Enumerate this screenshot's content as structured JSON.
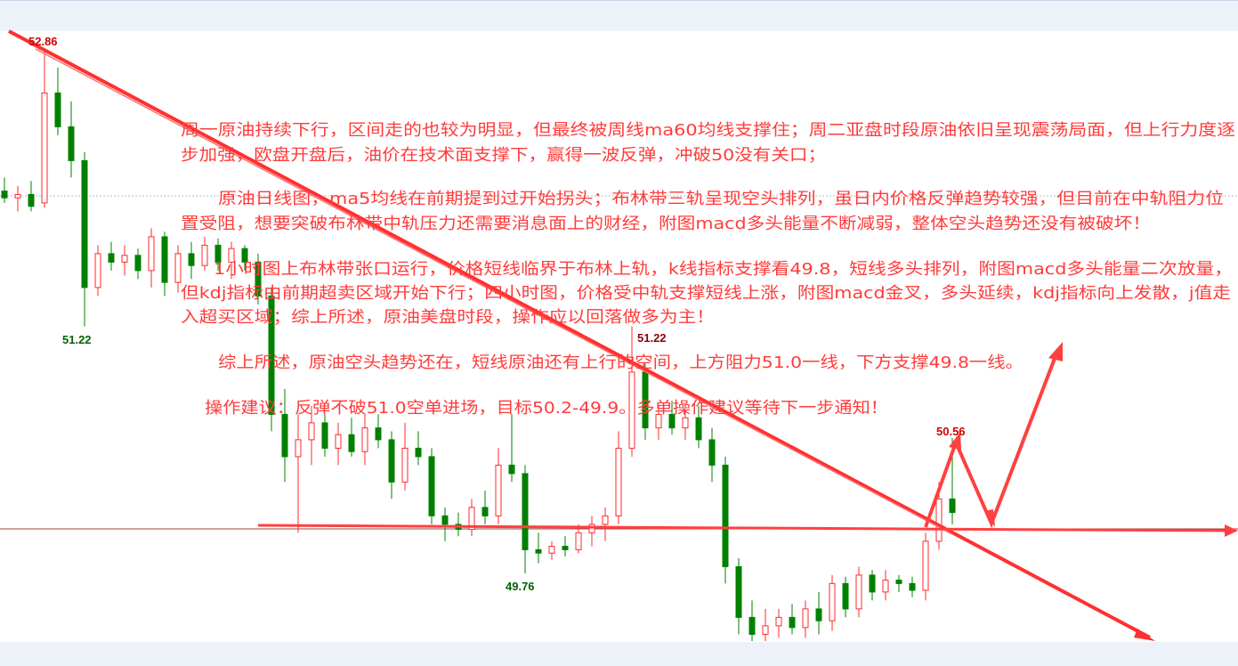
{
  "chart_data": {
    "type": "candlestick",
    "title": "",
    "ylim": [
      49.36,
      53.0
    ],
    "colors": {
      "up": "#ff2a2a",
      "down": "#008000",
      "annotation": "#ff3b3b",
      "trendline": "#ff3030"
    },
    "candles": [
      [
        52.02,
        52.1,
        51.95,
        51.98
      ],
      [
        51.98,
        52.05,
        51.9,
        52.0
      ],
      [
        52.0,
        52.08,
        51.9,
        51.93
      ],
      [
        51.95,
        52.86,
        51.92,
        52.6
      ],
      [
        52.6,
        52.75,
        52.35,
        52.4
      ],
      [
        52.4,
        52.55,
        52.1,
        52.2
      ],
      [
        52.2,
        52.25,
        51.22,
        51.45
      ],
      [
        51.45,
        51.7,
        51.4,
        51.65
      ],
      [
        51.65,
        51.72,
        51.55,
        51.6
      ],
      [
        51.6,
        51.7,
        51.52,
        51.64
      ],
      [
        51.64,
        51.68,
        51.5,
        51.55
      ],
      [
        51.55,
        51.8,
        51.45,
        51.75
      ],
      [
        51.75,
        51.78,
        51.4,
        51.48
      ],
      [
        51.48,
        51.7,
        51.42,
        51.65
      ],
      [
        51.65,
        51.72,
        51.5,
        51.58
      ],
      [
        51.58,
        51.75,
        51.55,
        51.7
      ],
      [
        51.7,
        51.74,
        51.55,
        51.6
      ],
      [
        51.6,
        51.72,
        51.5,
        51.68
      ],
      [
        51.68,
        51.7,
        51.55,
        51.6
      ],
      [
        51.6,
        51.65,
        51.35,
        51.4
      ],
      [
        51.4,
        51.45,
        50.6,
        50.7
      ],
      [
        50.7,
        50.85,
        50.3,
        50.45
      ],
      [
        50.45,
        50.7,
        50.0,
        50.55
      ],
      [
        50.55,
        50.75,
        50.4,
        50.65
      ],
      [
        50.65,
        50.7,
        50.45,
        50.5
      ],
      [
        50.5,
        50.65,
        50.4,
        50.58
      ],
      [
        50.58,
        50.68,
        50.45,
        50.48
      ],
      [
        50.48,
        50.7,
        50.4,
        50.62
      ],
      [
        50.62,
        50.7,
        50.5,
        50.55
      ],
      [
        50.55,
        50.6,
        50.2,
        50.3
      ],
      [
        50.3,
        50.65,
        50.25,
        50.5
      ],
      [
        50.5,
        50.6,
        50.4,
        50.45
      ],
      [
        50.45,
        50.5,
        50.05,
        50.1
      ],
      [
        50.1,
        50.15,
        49.95,
        50.05
      ],
      [
        50.05,
        50.12,
        49.98,
        50.02
      ],
      [
        50.02,
        50.2,
        49.98,
        50.15
      ],
      [
        50.15,
        50.25,
        50.05,
        50.1
      ],
      [
        50.1,
        50.5,
        50.05,
        50.4
      ],
      [
        50.4,
        50.7,
        50.3,
        50.35
      ],
      [
        50.35,
        50.4,
        49.76,
        49.9
      ],
      [
        49.9,
        50.0,
        49.82,
        49.88
      ],
      [
        49.88,
        49.95,
        49.84,
        49.92
      ],
      [
        49.92,
        49.98,
        49.86,
        49.9
      ],
      [
        49.9,
        50.05,
        49.88,
        50.0
      ],
      [
        50.0,
        50.1,
        49.92,
        50.05
      ],
      [
        50.05,
        50.15,
        49.95,
        50.1
      ],
      [
        50.1,
        50.6,
        50.05,
        50.5
      ],
      [
        50.5,
        51.22,
        50.45,
        50.95
      ],
      [
        50.95,
        51.0,
        50.55,
        50.62
      ],
      [
        50.62,
        50.75,
        50.55,
        50.7
      ],
      [
        50.7,
        50.78,
        50.58,
        50.62
      ],
      [
        50.62,
        50.72,
        50.55,
        50.68
      ],
      [
        50.68,
        50.75,
        50.5,
        50.55
      ],
      [
        50.55,
        50.62,
        50.3,
        50.4
      ],
      [
        50.4,
        50.45,
        49.7,
        49.8
      ],
      [
        49.8,
        49.85,
        49.4,
        49.5
      ],
      [
        49.5,
        49.6,
        49.36,
        49.4
      ],
      [
        49.4,
        49.55,
        49.36,
        49.45
      ],
      [
        49.45,
        49.55,
        49.38,
        49.5
      ],
      [
        49.5,
        49.58,
        49.4,
        49.44
      ],
      [
        49.44,
        49.6,
        49.38,
        49.55
      ],
      [
        49.55,
        49.65,
        49.4,
        49.48
      ],
      [
        49.48,
        49.75,
        49.42,
        49.7
      ],
      [
        49.7,
        49.74,
        49.5,
        49.55
      ],
      [
        49.55,
        49.8,
        49.5,
        49.75
      ],
      [
        49.75,
        49.78,
        49.6,
        49.65
      ],
      [
        49.65,
        49.78,
        49.6,
        49.72
      ],
      [
        49.72,
        49.75,
        49.65,
        49.7
      ],
      [
        49.7,
        49.74,
        49.62,
        49.66
      ],
      [
        49.66,
        50.0,
        49.6,
        49.95
      ],
      [
        49.95,
        50.3,
        49.9,
        50.2
      ],
      [
        50.2,
        50.56,
        50.05,
        50.12
      ]
    ],
    "price_labels": {
      "high1": "52.86",
      "low1": "51.22",
      "low2": "49.76",
      "high2": "51.22",
      "high3": "50.56"
    },
    "support_level": 50.0
  },
  "annotations": {
    "p1": [
      "周一原油持续下行，区间走的也较为明显，但最终被周线ma60均线支撑住；周二亚盘时段原油依旧呈现震荡局面，但上行力度逐",
      "步加强，欧盘开盘后，油价在技术面支撑下，赢得一波反弹，冲破50没有关口；"
    ],
    "p2": [
      "原油日线图，ma5均线在前期提到过开始拐头；布林带三轨呈现空头排列，虽日内价格反弹趋势较强，但目前在中轨阻力位",
      "置受阻，想要突破布林带中轨压力还需要消息面上的财经，附图macd多头能量不断减弱，整体空头趋势还没有被破坏！"
    ],
    "p3": [
      "1小时图上布林带张口运行，价格短线临界于布林上轨，k线指标支撑看49.8，短线多头排列，附图macd多头能量二次放量，",
      "但kdj指标由前期超卖区域开始下行；四小时图，价格受中轨支撑短线上涨，附图macd金叉，多头延续，kdj指标向上发散，j值走",
      "入超买区域；综上所述，原油美盘时段，操作应以回落做多为主！"
    ],
    "p4": "综上所述，原油空头趋势还在，短线原油还有上行的空间，上方阻力51.0一线，下方支撑49.8一线。",
    "p5": "操作建议：反弹不破51.0空单进场，目标50.2-49.9。多单操作建议等待下一步通知！"
  }
}
